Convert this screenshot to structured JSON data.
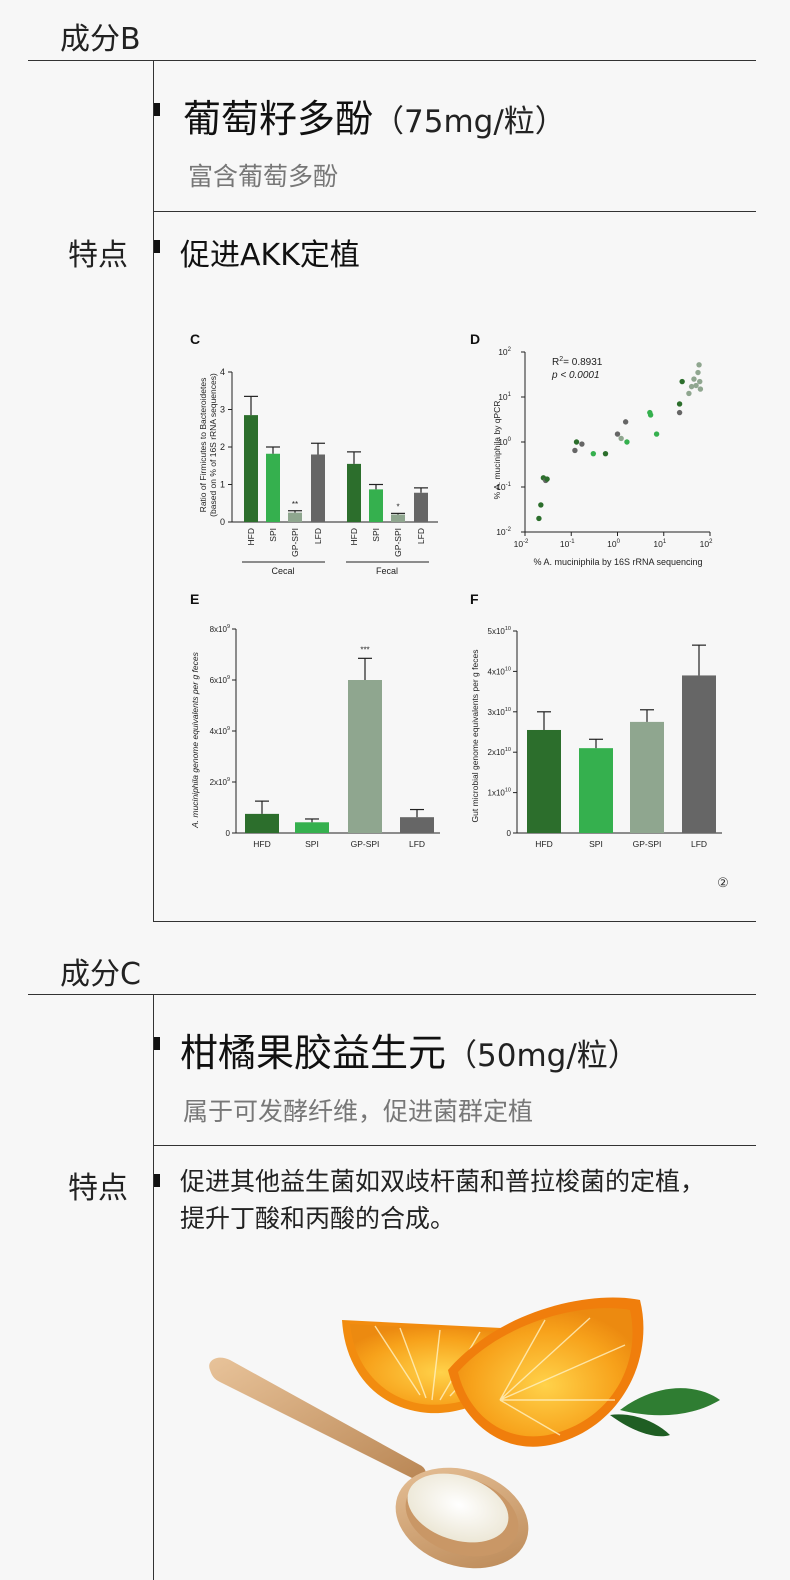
{
  "section_b": {
    "heading": "成分B",
    "ingredient_name": "葡萄籽多酚",
    "ingredient_dose": "（75mg/粒）",
    "ingredient_sub": "富含葡萄多酚",
    "feature_label": "特点",
    "feature_text": "促进AKK定植",
    "figure": {
      "citation": "②",
      "panel_c": {
        "letter": "C",
        "ylabel_line1": "Ratio of Firmicutes to Bacteroidetes",
        "ylabel_line2": "(based on % of 16S rRNA sequences)",
        "yticks": [
          "0",
          "1",
          "2",
          "3",
          "4"
        ],
        "groups": [
          "Cecal",
          "Fecal"
        ]
      },
      "panel_d": {
        "letter": "D",
        "r2_label": "R",
        "r2_sup": "2",
        "r2_value": "= 0.8931",
        "p_label": "p < 0.0001",
        "ylabel": "% A. muciniphila by qPCR",
        "xlabel": "% A. muciniphila by 16S rRNA sequencing",
        "ticks": [
          "10",
          "10",
          "10",
          "10",
          "10"
        ],
        "tick_exponents": [
          "-2",
          "-1",
          "0",
          "1",
          "2"
        ]
      },
      "panel_e": {
        "letter": "E",
        "ylabel": "A. muciniphila genome equivalents per g feces",
        "yticks": [
          "0",
          "2x10",
          "4x10",
          "6x10",
          "8x10"
        ],
        "ytick_exp": "9",
        "sig": "***"
      },
      "panel_f": {
        "letter": "F",
        "ylabel": "Gut microbial genome equivalents per g feces",
        "yticks": [
          "0",
          "1x10",
          "2x10",
          "3x10",
          "4x10",
          "5x10"
        ],
        "ytick_exp": "10"
      }
    }
  },
  "section_c": {
    "heading": "成分C",
    "ingredient_name": "柑橘果胶益生元",
    "ingredient_dose": "（50mg/粒）",
    "ingredient_sub": "属于可发酵纤维，促进菌群定植",
    "feature_label": "特点",
    "feature_line1": "促进其他益生菌如双歧杆菌和普拉梭菌的定植，",
    "feature_line2": "提升丁酸和丙酸的合成。"
  },
  "colors": {
    "hfd": "#2c6e2c",
    "spi": "#35b04e",
    "gp_spi": "#8fa68f",
    "lfd": "#666666"
  },
  "chart_data": [
    {
      "type": "bar",
      "panel": "C",
      "categories": [
        "HFD",
        "SPI",
        "GP-SPI",
        "LFD",
        "HFD",
        "SPI",
        "GP-SPI",
        "LFD"
      ],
      "groups": [
        "Cecal",
        "Cecal",
        "Cecal",
        "Cecal",
        "Fecal",
        "Fecal",
        "Fecal",
        "Fecal"
      ],
      "values": [
        2.85,
        1.82,
        0.25,
        1.8,
        1.55,
        0.87,
        0.2,
        0.78
      ],
      "errors": [
        0.5,
        0.18,
        0.05,
        0.3,
        0.32,
        0.13,
        0.03,
        0.13
      ],
      "annotations": [
        "",
        "",
        "**",
        "",
        "",
        "",
        "*",
        ""
      ],
      "ylabel": "Ratio of Firmicutes to Bacteroidetes (based on % of 16S rRNA sequences)",
      "ylim": [
        0,
        4
      ]
    },
    {
      "type": "scatter",
      "panel": "D",
      "xlabel": "% A. muciniphila by 16S rRNA sequencing",
      "ylabel": "% A. muciniphila by qPCR",
      "xscale": "log",
      "yscale": "log",
      "xlim": [
        0.01,
        100
      ],
      "ylim": [
        0.01,
        100
      ],
      "points": [
        {
          "x": 0.02,
          "y": 0.02,
          "g": "hfd"
        },
        {
          "x": 0.022,
          "y": 0.04,
          "g": "hfd"
        },
        {
          "x": 0.025,
          "y": 0.16,
          "g": "hfd"
        },
        {
          "x": 0.028,
          "y": 0.14,
          "g": "lfd"
        },
        {
          "x": 0.03,
          "y": 0.15,
          "g": "hfd"
        },
        {
          "x": 0.12,
          "y": 0.65,
          "g": "lfd"
        },
        {
          "x": 0.13,
          "y": 1.0,
          "g": "hfd"
        },
        {
          "x": 0.17,
          "y": 0.9,
          "g": "lfd"
        },
        {
          "x": 0.3,
          "y": 0.55,
          "g": "spi"
        },
        {
          "x": 0.55,
          "y": 0.55,
          "g": "hfd"
        },
        {
          "x": 1.0,
          "y": 1.5,
          "g": "lfd"
        },
        {
          "x": 1.2,
          "y": 1.2,
          "g": "gp_spi"
        },
        {
          "x": 1.5,
          "y": 2.8,
          "g": "lfd"
        },
        {
          "x": 1.6,
          "y": 1.0,
          "g": "spi"
        },
        {
          "x": 5.0,
          "y": 4.5,
          "g": "spi"
        },
        {
          "x": 5.2,
          "y": 4.0,
          "g": "spi"
        },
        {
          "x": 7.0,
          "y": 1.5,
          "g": "spi"
        },
        {
          "x": 22,
          "y": 4.5,
          "g": "lfd"
        },
        {
          "x": 22,
          "y": 7.0,
          "g": "hfd"
        },
        {
          "x": 25,
          "y": 22,
          "g": "hfd"
        },
        {
          "x": 35,
          "y": 12,
          "g": "gp_spi"
        },
        {
          "x": 40,
          "y": 17,
          "g": "gp_spi"
        },
        {
          "x": 45,
          "y": 25,
          "g": "gp_spi"
        },
        {
          "x": 50,
          "y": 18,
          "g": "gp_spi"
        },
        {
          "x": 55,
          "y": 35,
          "g": "gp_spi"
        },
        {
          "x": 58,
          "y": 52,
          "g": "gp_spi"
        },
        {
          "x": 60,
          "y": 22,
          "g": "gp_spi"
        },
        {
          "x": 62,
          "y": 15,
          "g": "gp_spi"
        }
      ],
      "annotation": "R2 = 0.8931, p < 0.0001"
    },
    {
      "type": "bar",
      "panel": "E",
      "categories": [
        "HFD",
        "SPI",
        "GP-SPI",
        "LFD"
      ],
      "values": [
        750000000.0,
        420000000.0,
        6000000000.0,
        620000000.0
      ],
      "errors": [
        500000000.0,
        130000000.0,
        850000000.0,
        300000000.0
      ],
      "annotations": [
        "",
        "",
        "***",
        ""
      ],
      "ylabel": "A. muciniphila genome equivalents per g feces",
      "ylim": [
        0,
        8000000000.0
      ]
    },
    {
      "type": "bar",
      "panel": "F",
      "categories": [
        "HFD",
        "SPI",
        "GP-SPI",
        "LFD"
      ],
      "values": [
        25500000000.0,
        21000000000.0,
        27500000000.0,
        39000000000.0
      ],
      "errors": [
        4500000000.0,
        2200000000.0,
        3000000000.0,
        7500000000.0
      ],
      "ylabel": "Gut microbial genome equivalents per g feces",
      "ylim": [
        0,
        50000000000.0
      ]
    }
  ]
}
